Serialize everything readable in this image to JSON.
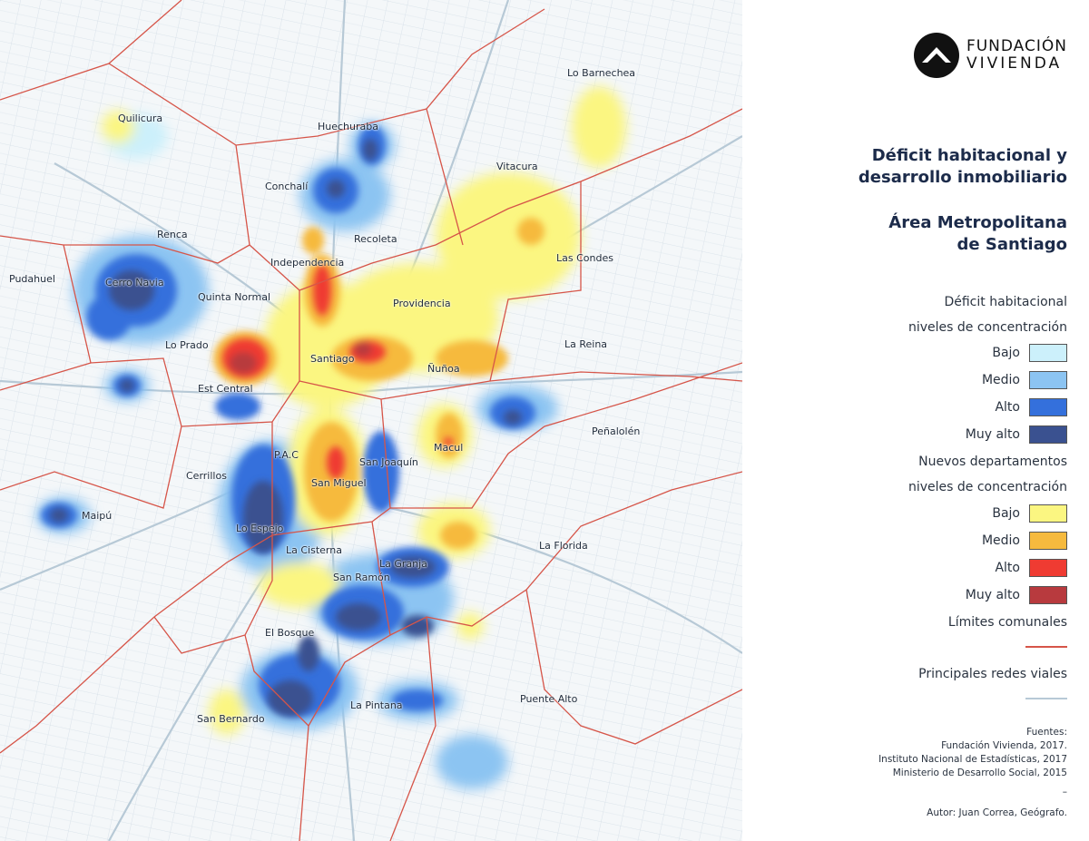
{
  "logo": {
    "line1": "FUNDACIÓN",
    "line2": "VIVIENDA",
    "icon": "fundacion-vivienda-house-icon"
  },
  "title": {
    "line1": "Déficit habitacional y",
    "line2": "desarrollo inmobiliario",
    "area_line1": "Área Metropolitana",
    "area_line2": "de Santiago"
  },
  "legend": {
    "deficit_heading1": "Déficit habitacional",
    "deficit_heading2": "niveles de concentración",
    "deficit_levels": [
      {
        "label": "Bajo",
        "color": "#ccf0fb"
      },
      {
        "label": "Medio",
        "color": "#8cc4f2"
      },
      {
        "label": "Alto",
        "color": "#3470dc"
      },
      {
        "label": "Muy alto",
        "color": "#3a5190"
      }
    ],
    "departamentos_heading1": "Nuevos departamentos",
    "departamentos_heading2": "niveles de concentración",
    "departamentos_levels": [
      {
        "label": "Bajo",
        "color": "#fbf681"
      },
      {
        "label": "Medio",
        "color": "#f6ba3e"
      },
      {
        "label": "Alto",
        "color": "#ef3b32"
      },
      {
        "label": "Muy alto",
        "color": "#b83a3e"
      }
    ],
    "limites_label": "Límites comunales",
    "limites_color": "#d65549",
    "redes_label": "Principales redes viales",
    "redes_color": "#b7c9d6"
  },
  "sources": {
    "heading": "Fuentes:",
    "lines": [
      "Fundación Vivienda, 2017.",
      "Instituto Nacional de Estadísticas, 2017",
      "Ministerio de Desarrollo Social, 2015"
    ],
    "dash": "–",
    "author": "Autor: Juan Correa, Geógrafo."
  },
  "comunas": [
    "Lo Barnechea",
    "Quilicura",
    "Huechuraba",
    "Conchalí",
    "Vitacura",
    "Renca",
    "Recoleta",
    "Independencia",
    "Las Condes",
    "Pudahuel",
    "Cerro Navia",
    "Quinta Normal",
    "Providencia",
    "Lo Prado",
    "La Reina",
    "Santiago",
    "Ñuñoa",
    "Est Central",
    "Peñalolén",
    "Macul",
    "P.A.C",
    "San Joaquín",
    "Cerrillos",
    "San Miguel",
    "Maipú",
    "Lo Espejo",
    "La Florida",
    "La Cisterna",
    "La Granja",
    "San Ramón",
    "El Bosque",
    "Puente Alto",
    "La Pintana",
    "San Bernardo"
  ]
}
